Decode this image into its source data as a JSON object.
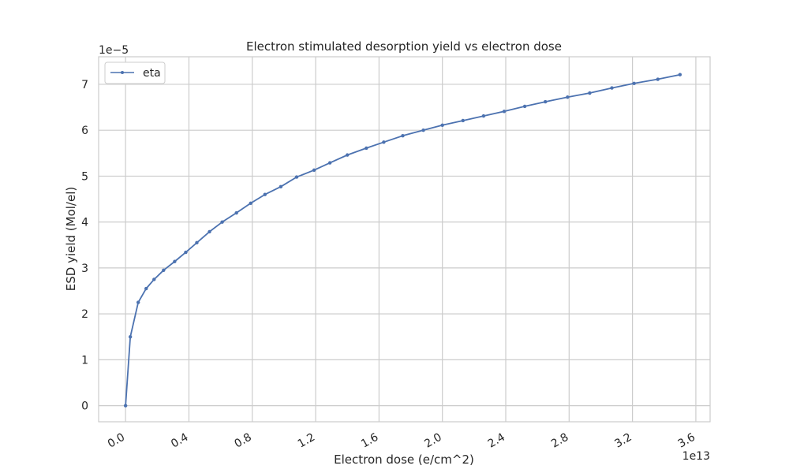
{
  "chart_data": {
    "type": "line",
    "title": "Electron stimulated desorption yield vs electron dose",
    "xlabel": "Electron dose (e/cm^2)",
    "ylabel": "ESD yield (Mol/el)",
    "x_offset_text": "1e13",
    "y_offset_text": "1e−5",
    "xlim": [
      -0.17,
      3.69
    ],
    "ylim": [
      -0.35,
      7.6
    ],
    "x_ticks": [
      0.0,
      0.4,
      0.8,
      1.2,
      1.6,
      2.0,
      2.4,
      2.8,
      3.2,
      3.6
    ],
    "x_tick_labels": [
      "0.0",
      "0.4",
      "0.8",
      "1.2",
      "1.6",
      "2.0",
      "2.4",
      "2.8",
      "3.2",
      "3.6"
    ],
    "y_ticks": [
      0,
      1,
      2,
      3,
      4,
      5,
      6,
      7
    ],
    "y_tick_labels": [
      "0",
      "1",
      "2",
      "3",
      "4",
      "5",
      "6",
      "7"
    ],
    "grid": true,
    "legend_position": "upper-left",
    "series": [
      {
        "name": "eta",
        "color": "#4c72b0",
        "marker": "circle",
        "x": [
          0.0,
          0.03,
          0.08,
          0.13,
          0.18,
          0.24,
          0.31,
          0.38,
          0.45,
          0.53,
          0.61,
          0.7,
          0.79,
          0.88,
          0.98,
          1.08,
          1.19,
          1.29,
          1.4,
          1.52,
          1.63,
          1.75,
          1.88,
          2.0,
          2.13,
          2.26,
          2.39,
          2.52,
          2.65,
          2.79,
          2.93,
          3.07,
          3.21,
          3.36,
          3.5
        ],
        "values": [
          0.0,
          1.5,
          2.25,
          2.55,
          2.75,
          2.95,
          3.14,
          3.34,
          3.55,
          3.79,
          4.0,
          4.2,
          4.41,
          4.6,
          4.77,
          4.98,
          5.13,
          5.29,
          5.46,
          5.61,
          5.74,
          5.88,
          6.0,
          6.11,
          6.21,
          6.31,
          6.41,
          6.52,
          6.62,
          6.72,
          6.81,
          6.92,
          7.02,
          7.11,
          7.21
        ]
      }
    ]
  }
}
